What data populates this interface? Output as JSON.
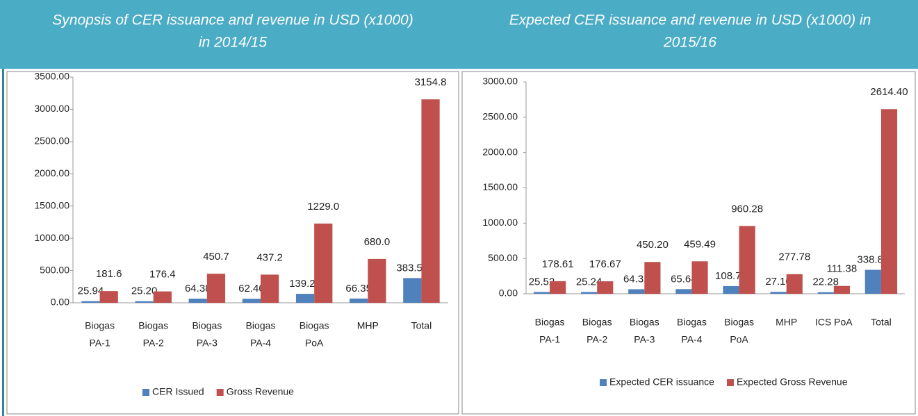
{
  "chart_data": [
    {
      "type": "bar",
      "title": [
        "Synopsis of CER issuance and revenue in USD (x1000)",
        "in 2014/15"
      ],
      "categories": [
        [
          "Biogas",
          "PA-1"
        ],
        [
          "Biogas",
          "PA-2"
        ],
        [
          "Biogas",
          "PA-3"
        ],
        [
          "Biogas",
          "PA-4"
        ],
        [
          "Biogas",
          "PoA"
        ],
        [
          "MHP"
        ],
        [
          "Total"
        ]
      ],
      "series": [
        {
          "name": "CER Issued",
          "color": "#4f81bd",
          "values": [
            25.94,
            25.2,
            64.38,
            62.46,
            139.2,
            66.35,
            383.52
          ],
          "value_labels": [
            "25.94",
            "25.20",
            "64.38",
            "62.46",
            "139.20",
            "66.35",
            "383.52"
          ]
        },
        {
          "name": "Gross Revenue",
          "color": "#c0504d",
          "values": [
            181.6,
            176.4,
            450.7,
            437.2,
            1229,
            680,
            3154.8
          ],
          "value_labels": [
            "181.6",
            "176.4",
            "450.7",
            "437.2",
            "1229.0",
            "680.0",
            "3154.8"
          ]
        }
      ],
      "ylim": [
        0,
        3500
      ],
      "yticks": [
        {
          "value": 0,
          "label": "0.00"
        },
        {
          "value": 500,
          "label": "500.00"
        },
        {
          "value": 1000,
          "label": "1000.00"
        },
        {
          "value": 1500,
          "label": "1500.00"
        },
        {
          "value": 2000,
          "label": "2000.00"
        },
        {
          "value": 2500,
          "label": "2500.00"
        },
        {
          "value": 3000,
          "label": "3000.00"
        },
        {
          "value": 3500,
          "label": "3500.00"
        }
      ],
      "legend": "bottom"
    },
    {
      "type": "bar",
      "title": [
        "Expected CER issuance and revenue in USD (x1000) in",
        "2015/16"
      ],
      "categories": [
        [
          "Biogas",
          "PA-1"
        ],
        [
          "Biogas",
          "PA-2"
        ],
        [
          "Biogas",
          "PA-3"
        ],
        [
          "Biogas",
          "PA-4"
        ],
        [
          "Biogas",
          "PoA"
        ],
        [
          "MHP"
        ],
        [
          "ICS PoA"
        ],
        [
          "Total"
        ]
      ],
      "series": [
        {
          "name": "Expected CER issuance",
          "color": "#4f81bd",
          "values": [
            25.52,
            25.24,
            64.31,
            65.64,
            108.76,
            27.1,
            22.28,
            338.85
          ],
          "value_labels": [
            "25.52",
            "25.24",
            "64.31",
            "65.64",
            "108.76",
            "27.10",
            "22.28",
            "338.85"
          ]
        },
        {
          "name": "Expected Gross Revenue",
          "color": "#c0504d",
          "values": [
            178.61,
            176.67,
            450.2,
            459.49,
            960.28,
            277.78,
            111.38,
            2614.4
          ],
          "value_labels": [
            "178.61",
            "176.67",
            "450.20",
            "459.49",
            "960.28",
            "277.78",
            "111.38",
            "2614.40"
          ]
        }
      ],
      "ylim": [
        0,
        3000
      ],
      "yticks": [
        {
          "value": 0,
          "label": "0.00"
        },
        {
          "value": 500,
          "label": "500.00"
        },
        {
          "value": 1000,
          "label": "1000.00"
        },
        {
          "value": 1500,
          "label": "1500.00"
        },
        {
          "value": 2000,
          "label": "2000.00"
        },
        {
          "value": 2500,
          "label": "2500.00"
        },
        {
          "value": 3000,
          "label": "3000.00"
        }
      ],
      "legend": "bottom"
    }
  ]
}
